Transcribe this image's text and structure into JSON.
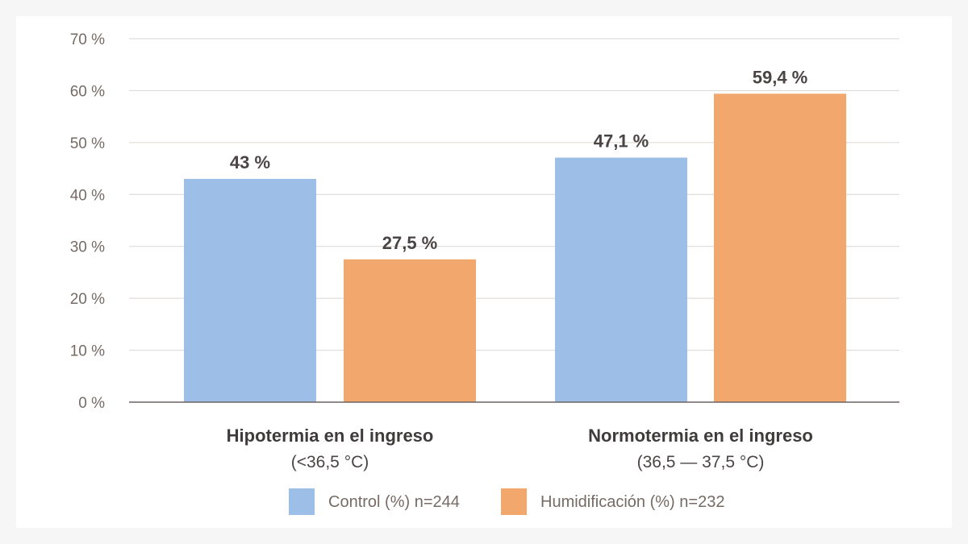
{
  "chart_data": {
    "type": "bar",
    "categories": [
      "Hipotermia en el ingreso",
      "Normotermia en el ingreso"
    ],
    "category_sublabels": [
      "(<36,5 °C)",
      "(36,5 — 37,5 °C)"
    ],
    "series": [
      {
        "name": "Control (%) n=244",
        "values": [
          43,
          47.1
        ],
        "labels": [
          "43 %",
          "47,1 %"
        ],
        "color": "#9dbfe7"
      },
      {
        "name": "Humidificación (%) n=232",
        "values": [
          27.5,
          59.4
        ],
        "labels": [
          "27,5 %",
          "59,4 %"
        ],
        "color": "#f2a76d"
      }
    ],
    "ylim": [
      0,
      70
    ],
    "yticks": [
      0,
      10,
      20,
      30,
      40,
      50,
      60,
      70
    ],
    "ytick_labels": [
      "0 %",
      "10 %",
      "20 %",
      "30 %",
      "40 %",
      "50 %",
      "60 %",
      "70 %"
    ],
    "grid": true,
    "legend_position": "bottom",
    "xlabel": "",
    "ylabel": "",
    "title": ""
  }
}
